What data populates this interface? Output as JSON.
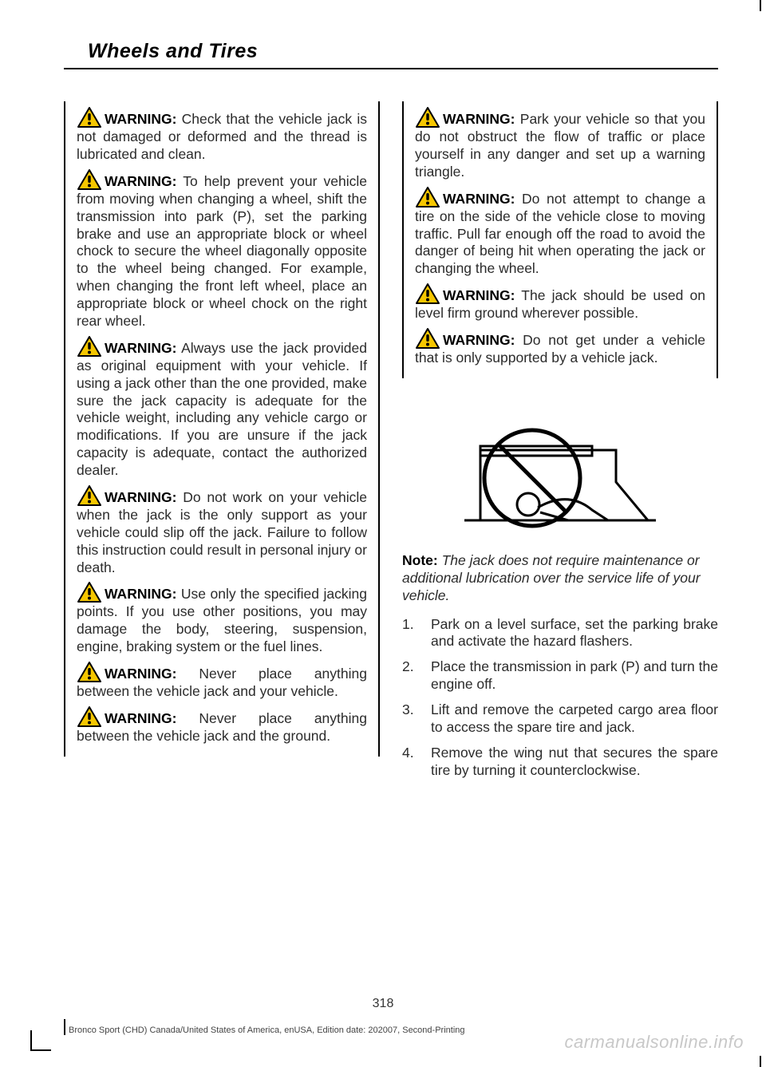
{
  "title": "Wheels and Tires",
  "page_number": "318",
  "footer": "Bronco Sport (CHD) Canada/United States of America, enUSA, Edition date: 202007, Second-Printing",
  "watermark": "carmanualsonline.info",
  "warning_label": "WARNING:",
  "note_label": "Note:",
  "warnings_left": [
    "Check that the vehicle jack is not damaged or deformed and the thread is lubricated and clean.",
    "To help prevent your vehicle from moving when changing a wheel, shift the transmission into park (P), set the parking brake and use an appropriate block or wheel chock to secure the wheel diagonally opposite to the wheel being changed. For example, when changing the front left wheel, place an appropriate block or wheel chock on the right rear wheel.",
    "Always use the jack provided as original equipment with your vehicle. If using a jack other than the one provided, make sure the jack capacity is adequate for the vehicle weight, including any vehicle cargo or modifications. If you are unsure if the jack capacity is adequate, contact the authorized dealer.",
    "Do not work on your vehicle when the jack is the only support as your vehicle could slip off the jack. Failure to follow this instruction could result in personal injury or death.",
    "Use only the specified jacking points. If you use other positions, you may damage the body, steering, suspension, engine, braking system or the fuel lines.",
    "Never place anything between the vehicle jack and your vehicle.",
    "Never place anything between the vehicle jack and the ground."
  ],
  "warnings_right": [
    "Park your vehicle so that you do not obstruct the flow of traffic or place yourself in any danger and set up a warning triangle.",
    "Do not attempt to change a tire on the side of the vehicle close to moving traffic. Pull far enough off the road to avoid the danger of being hit when operating the jack or changing the wheel.",
    "The jack should be used on level firm ground wherever possible.",
    "Do not get under a vehicle that is only supported by a vehicle jack."
  ],
  "note_text": "The jack does not require maintenance or additional lubrication over the service life of your vehicle.",
  "steps": [
    "Park on a level surface, set the parking brake and activate the hazard flashers.",
    "Place the transmission in park (P) and turn the engine off.",
    "Lift and remove the carpeted cargo area floor to access the spare tire and jack.",
    "Remove the wing nut that secures the spare tire by turning it counterclockwise."
  ],
  "colors": {
    "icon_yellow": "#f5c600",
    "icon_stroke": "#000000",
    "text": "#2b2b2b"
  }
}
